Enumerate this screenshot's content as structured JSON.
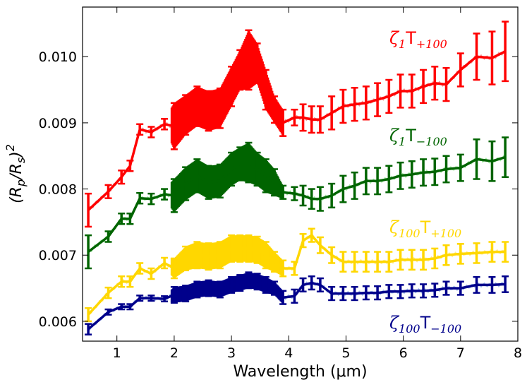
{
  "chart_data": {
    "type": "line",
    "title": "",
    "xlabel": "Wavelength (μm)",
    "ylabel": "(Rp/Rs)²",
    "xlim": [
      0.4,
      8.0
    ],
    "ylim": [
      0.0057,
      0.01075
    ],
    "xticks": [
      1,
      2,
      3,
      4,
      5,
      6,
      7,
      8
    ],
    "xtick_labels": [
      "1",
      "2",
      "3",
      "4",
      "5",
      "6",
      "7",
      "8"
    ],
    "yticks": [
      0.006,
      0.007,
      0.008,
      0.009,
      0.01
    ],
    "ytick_labels": [
      "0.006",
      "0.007",
      "0.008",
      "0.009",
      "0.010"
    ],
    "grid": false,
    "legend_position": "right (inline labels)",
    "series": [
      {
        "name": "ζ1 T+100",
        "label_base": "ζ",
        "label_zeta_sub": "1",
        "label_T": "T",
        "label_T_sub": "+100",
        "color": "#ff0000",
        "model_color": "#ee8080",
        "x": [
          0.5,
          0.85,
          1.08,
          1.23,
          1.4,
          1.6,
          1.83,
          2.0,
          2.2,
          2.4,
          2.6,
          2.8,
          3.0,
          3.15,
          3.3,
          3.45,
          3.6,
          3.75,
          3.9,
          4.1,
          4.25,
          4.4,
          4.55,
          4.75,
          4.95,
          5.15,
          5.35,
          5.55,
          5.75,
          5.95,
          6.15,
          6.35,
          6.55,
          6.75,
          7.0,
          7.28,
          7.55,
          7.78
        ],
        "y": [
          0.00768,
          0.00796,
          0.00818,
          0.00835,
          0.0089,
          0.00886,
          0.00898,
          0.00895,
          0.00912,
          0.00925,
          0.00918,
          0.00922,
          0.00955,
          0.0098,
          0.00995,
          0.0099,
          0.0095,
          0.0092,
          0.009,
          0.00908,
          0.00908,
          0.00905,
          0.00905,
          0.00915,
          0.00925,
          0.00928,
          0.0093,
          0.00935,
          0.0094,
          0.00948,
          0.00948,
          0.00955,
          0.0096,
          0.00958,
          0.0098,
          0.01,
          0.00998,
          0.01008
        ],
        "err": [
          0.00025,
          0.0001,
          0.0001,
          8e-05,
          8e-05,
          8e-05,
          8e-05,
          0.00035,
          0.0003,
          0.0003,
          0.0003,
          0.0003,
          0.0003,
          0.0003,
          0.00045,
          0.0003,
          0.0003,
          0.0002,
          0.0002,
          0.00012,
          0.0002,
          0.0002,
          0.0002,
          0.00025,
          0.00025,
          0.00025,
          0.00025,
          0.00025,
          0.00025,
          0.00025,
          0.00025,
          0.00025,
          0.00025,
          0.00025,
          0.00025,
          0.00035,
          0.0004,
          0.00045
        ]
      },
      {
        "name": "ζ1 T−100",
        "label_base": "ζ",
        "label_zeta_sub": "1",
        "label_T": "T",
        "label_T_sub": "−100",
        "color": "#006400",
        "model_color": "#8fe88f",
        "x": [
          0.5,
          0.85,
          1.08,
          1.23,
          1.4,
          1.6,
          1.83,
          2.0,
          2.2,
          2.4,
          2.6,
          2.8,
          3.0,
          3.15,
          3.3,
          3.45,
          3.6,
          3.75,
          3.9,
          4.1,
          4.25,
          4.4,
          4.55,
          4.75,
          4.95,
          5.15,
          5.35,
          5.55,
          5.75,
          5.95,
          6.15,
          6.35,
          6.55,
          6.75,
          7.0,
          7.28,
          7.55,
          7.78
        ],
        "y": [
          0.00705,
          0.00728,
          0.00755,
          0.00755,
          0.00786,
          0.00785,
          0.00792,
          0.0079,
          0.00808,
          0.0082,
          0.0081,
          0.00812,
          0.0083,
          0.00838,
          0.0084,
          0.0083,
          0.0082,
          0.0081,
          0.00795,
          0.00793,
          0.0079,
          0.00785,
          0.00785,
          0.0079,
          0.008,
          0.00805,
          0.00812,
          0.00812,
          0.00815,
          0.0082,
          0.00822,
          0.00825,
          0.00826,
          0.0083,
          0.00832,
          0.00845,
          0.00842,
          0.00848
        ],
        "err": [
          0.00025,
          8e-05,
          8e-05,
          8e-05,
          8e-05,
          8e-05,
          8e-05,
          0.00025,
          0.00025,
          0.00025,
          0.00025,
          0.00025,
          0.00025,
          0.00025,
          0.0003,
          0.00025,
          0.00025,
          0.0002,
          0.0001,
          0.0001,
          0.00015,
          0.00015,
          0.00018,
          0.00018,
          0.0002,
          0.0002,
          0.0002,
          0.0002,
          0.0002,
          0.0002,
          0.0002,
          0.0002,
          0.0002,
          0.0002,
          0.0002,
          0.0003,
          0.0003,
          0.0003
        ]
      },
      {
        "name": "ζ100 T+100",
        "label_base": "ζ",
        "label_zeta_sub": "100",
        "label_T": "T",
        "label_T_sub": "+100",
        "color": "#ffd700",
        "model_color": "#ffe680",
        "x": [
          0.5,
          0.85,
          1.08,
          1.23,
          1.4,
          1.6,
          1.83,
          2.0,
          2.2,
          2.4,
          2.6,
          2.8,
          3.0,
          3.15,
          3.3,
          3.45,
          3.6,
          3.75,
          3.9,
          4.1,
          4.25,
          4.4,
          4.55,
          4.75,
          4.95,
          5.15,
          5.35,
          5.55,
          5.75,
          5.95,
          6.15,
          6.35,
          6.55,
          6.75,
          7.0,
          7.28,
          7.55,
          7.78
        ],
        "y": [
          0.0061,
          0.00643,
          0.0066,
          0.0066,
          0.0068,
          0.00672,
          0.00688,
          0.0068,
          0.00695,
          0.007,
          0.00698,
          0.007,
          0.0071,
          0.0071,
          0.0071,
          0.00708,
          0.007,
          0.0069,
          0.0068,
          0.0068,
          0.00722,
          0.0073,
          0.00715,
          0.007,
          0.0069,
          0.0069,
          0.0069,
          0.0069,
          0.0069,
          0.00693,
          0.00693,
          0.00693,
          0.00695,
          0.007,
          0.00702,
          0.00703,
          0.00705,
          0.00705
        ],
        "err": [
          0.0001,
          8e-05,
          8e-05,
          8e-05,
          8e-05,
          8e-05,
          8e-05,
          0.00015,
          0.00018,
          0.0002,
          0.0002,
          0.0002,
          0.0002,
          0.0002,
          0.0002,
          0.0002,
          0.0002,
          0.00015,
          0.00012,
          0.0001,
          0.0001,
          0.0001,
          0.00012,
          0.00012,
          0.00015,
          0.00015,
          0.00015,
          0.00015,
          0.00015,
          0.00015,
          0.00015,
          0.00015,
          0.00015,
          0.00015,
          0.00015,
          0.00015,
          0.00015,
          0.00015
        ]
      },
      {
        "name": "ζ100 T−100",
        "label_base": "ζ",
        "label_zeta_sub": "100",
        "label_T": "T",
        "label_T_sub": "−100",
        "color": "#00008b",
        "model_color": "#8fb0e8",
        "x": [
          0.5,
          0.85,
          1.08,
          1.23,
          1.4,
          1.6,
          1.83,
          2.0,
          2.2,
          2.4,
          2.6,
          2.8,
          3.0,
          3.15,
          3.3,
          3.45,
          3.6,
          3.75,
          3.9,
          4.1,
          4.25,
          4.4,
          4.55,
          4.75,
          4.95,
          5.15,
          5.35,
          5.55,
          5.75,
          5.95,
          6.15,
          6.35,
          6.55,
          6.75,
          7.0,
          7.28,
          7.55,
          7.78
        ],
        "y": [
          0.00588,
          0.00614,
          0.00622,
          0.00622,
          0.00635,
          0.00635,
          0.00634,
          0.0064,
          0.00642,
          0.00648,
          0.0065,
          0.00648,
          0.00655,
          0.00658,
          0.00662,
          0.0066,
          0.00655,
          0.0065,
          0.00636,
          0.00638,
          0.00655,
          0.00658,
          0.00655,
          0.00642,
          0.00642,
          0.00642,
          0.00643,
          0.00643,
          0.00645,
          0.00645,
          0.00646,
          0.00646,
          0.00647,
          0.0065,
          0.0065,
          0.00655,
          0.00655,
          0.00656
        ],
        "err": [
          8e-05,
          4e-05,
          4e-05,
          4e-05,
          4e-05,
          4e-05,
          4e-05,
          0.00012,
          0.00012,
          0.00012,
          0.00012,
          0.00012,
          0.00012,
          0.00012,
          0.00012,
          0.00012,
          0.00012,
          0.0001,
          0.0001,
          0.0001,
          0.0001,
          0.0001,
          0.0001,
          0.0001,
          0.0001,
          0.0001,
          0.0001,
          0.0001,
          0.0001,
          0.0001,
          0.0001,
          0.0001,
          0.0001,
          0.0001,
          0.0001,
          0.00012,
          0.00012,
          0.00012
        ]
      }
    ]
  }
}
